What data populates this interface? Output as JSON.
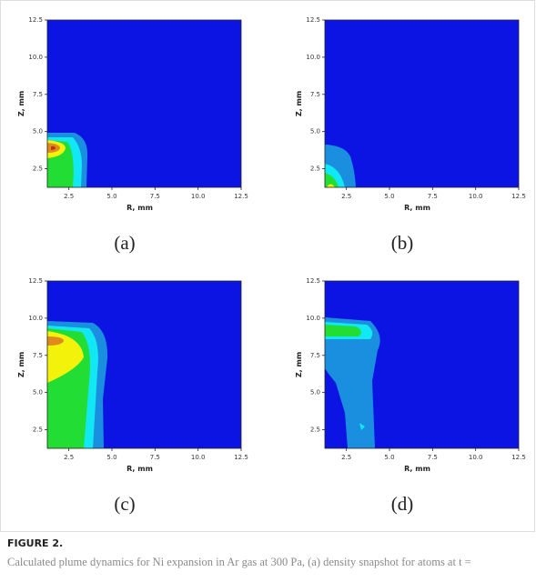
{
  "figure": {
    "panels": [
      {
        "label": "(a)",
        "xlabel": "R, mm",
        "ylabel": "Z, mm",
        "xlim": [
          1.25,
          12.5
        ],
        "ylim": [
          1.25,
          12.5
        ],
        "xticks": [
          2.5,
          {
            "value": 5,
            "label": "5.0"
          },
          7.5,
          {
            "value": 10,
            "label": "10.0"
          },
          12.5
        ],
        "yticks": [
          2.5,
          {
            "value": 5,
            "label": "5.0"
          },
          7.5,
          {
            "value": 10,
            "label": "10.0"
          },
          12.5
        ]
      },
      {
        "label": "(b)",
        "xlabel": "R, mm",
        "ylabel": "Z, mm",
        "xlim": [
          1.25,
          12.5
        ],
        "ylim": [
          1.25,
          12.5
        ],
        "xticks": [
          2.5,
          {
            "value": 5,
            "label": "5.0"
          },
          7.5,
          {
            "value": 10,
            "label": "10.0"
          },
          12.5
        ],
        "yticks": [
          2.5,
          {
            "value": 5,
            "label": "5.0"
          },
          7.5,
          {
            "value": 10,
            "label": "10.0"
          },
          12.5
        ]
      },
      {
        "label": "(c)",
        "xlabel": "R, mm",
        "ylabel": "Z, mm",
        "xlim": [
          1.25,
          12.5
        ],
        "ylim": [
          1.25,
          12.5
        ],
        "xticks": [
          2.5,
          {
            "value": 5,
            "label": "5.0"
          },
          7.5,
          {
            "value": 10,
            "label": "10.0"
          },
          12.5
        ],
        "yticks": [
          2.5,
          {
            "value": 5,
            "label": "5.0"
          },
          7.5,
          {
            "value": 10,
            "label": "10.0"
          },
          12.5
        ]
      },
      {
        "label": "(d)",
        "xlabel": "R, mm",
        "ylabel": "Z, mm",
        "xlim": [
          1.25,
          12.5
        ],
        "ylim": [
          1.25,
          12.5
        ],
        "xticks": [
          2.5,
          {
            "value": 5,
            "label": "5.0"
          },
          7.5,
          {
            "value": 10,
            "label": "10.0"
          },
          12.5
        ],
        "yticks": [
          2.5,
          {
            "value": 5,
            "label": "5.0"
          },
          7.5,
          {
            "value": 10,
            "label": "10.0"
          },
          12.5
        ]
      }
    ],
    "caption": {
      "heading": "FIGURE 2.",
      "text": "Calculated plume dynamics for Ni expansion in Ar gas at 300 Pa, (a) density snapshot for atoms at t ="
    }
  }
}
